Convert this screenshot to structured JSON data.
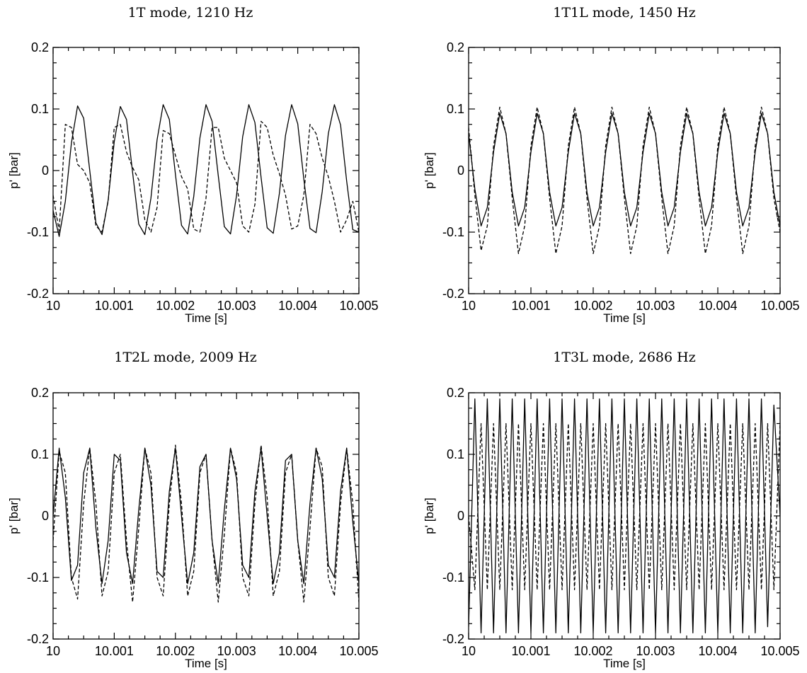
{
  "chart_data": [
    {
      "type": "line",
      "title": "1T mode, 1210 Hz",
      "xlabel": "Time [s]",
      "ylabel": "p' [bar]",
      "xlim": [
        10,
        10.005
      ],
      "ylim": [
        -0.2,
        0.2
      ],
      "xtick_labels": [
        "10",
        "10.001",
        "10.002",
        "10.003",
        "10.004",
        "10.005"
      ],
      "ytick_labels": [
        "-0.2",
        "-0.1",
        "0",
        "0.1",
        "0.2"
      ],
      "series": [
        {
          "style": "solid",
          "x": [
            10.0,
            10.0001,
            10.0002,
            10.0003,
            10.0004,
            10.0005,
            10.0006,
            10.0007,
            10.0008,
            10.0009,
            10.001,
            10.0011,
            10.0012,
            10.0013,
            10.0014,
            10.0015,
            10.0016,
            10.0017,
            10.0018,
            10.0019,
            10.002,
            10.0021,
            10.0022,
            10.0023,
            10.0024,
            10.0025,
            10.0026,
            10.0027,
            10.0028,
            10.0029,
            10.003,
            10.0031,
            10.0032,
            10.0033,
            10.0034,
            10.0035,
            10.0036,
            10.0037,
            10.0038,
            10.0039,
            10.004,
            10.0041,
            10.0042,
            10.0043,
            10.0044,
            10.0045,
            10.0046,
            10.0047,
            10.0048,
            10.0049,
            10.005
          ],
          "values": [
            -0.065,
            -0.107,
            -0.05,
            0.045,
            0.105,
            0.085,
            0.0,
            -0.085,
            -0.104,
            -0.048,
            0.047,
            0.104,
            0.083,
            -0.003,
            -0.087,
            -0.104,
            -0.045,
            0.05,
            0.107,
            0.083,
            -0.006,
            -0.089,
            -0.103,
            -0.042,
            0.053,
            0.107,
            0.08,
            -0.008,
            -0.091,
            -0.103,
            -0.04,
            0.055,
            0.107,
            0.078,
            -0.011,
            -0.093,
            -0.102,
            -0.037,
            0.057,
            0.107,
            0.076,
            -0.014,
            -0.094,
            -0.101,
            -0.034,
            0.06,
            0.107,
            0.074,
            -0.017,
            -0.096,
            -0.1
          ]
        },
        {
          "style": "dashed",
          "x": [
            10.0,
            10.0001,
            10.0002,
            10.0003,
            10.0004,
            10.0005,
            10.0006,
            10.0007,
            10.0008,
            10.0009,
            10.001,
            10.0011,
            10.0012,
            10.0013,
            10.0014,
            10.0015,
            10.0016,
            10.0017,
            10.0018,
            10.0019,
            10.002,
            10.0021,
            10.0022,
            10.0023,
            10.0024,
            10.0025,
            10.0026,
            10.0027,
            10.0028,
            10.0029,
            10.003,
            10.0031,
            10.0032,
            10.0033,
            10.0034,
            10.0035,
            10.0036,
            10.0037,
            10.0038,
            10.0039,
            10.004,
            10.0041,
            10.0042,
            10.0043,
            10.0044,
            10.0045,
            10.0046,
            10.0047,
            10.0048,
            10.0049,
            10.005
          ],
          "values": [
            -0.04,
            -0.098,
            0.075,
            0.07,
            0.01,
            0.0,
            -0.02,
            -0.09,
            -0.1,
            -0.05,
            0.07,
            0.075,
            0.03,
            0.005,
            -0.015,
            -0.08,
            -0.1,
            -0.06,
            0.065,
            0.06,
            0.025,
            -0.01,
            -0.03,
            -0.095,
            -0.1,
            -0.045,
            0.07,
            0.07,
            0.02,
            0.0,
            -0.02,
            -0.09,
            -0.1,
            -0.055,
            0.08,
            0.07,
            0.025,
            -0.005,
            -0.04,
            -0.095,
            -0.09,
            -0.04,
            0.075,
            0.06,
            0.02,
            -0.01,
            -0.05,
            -0.1,
            -0.08,
            -0.05,
            -0.1
          ]
        }
      ]
    },
    {
      "type": "line",
      "title": "1T1L mode, 1450 Hz",
      "xlabel": "Time [s]",
      "ylabel": "p' [bar]",
      "xlim": [
        10,
        10.005
      ],
      "ylim": [
        -0.2,
        0.2
      ],
      "xtick_labels": [
        "10",
        "10.001",
        "10.002",
        "10.003",
        "10.004",
        "10.005"
      ],
      "ytick_labels": [
        "-0.2",
        "-0.1",
        "0",
        "0.1",
        "0.2"
      ],
      "series": [
        {
          "style": "solid",
          "x": [
            10.0,
            10.0001,
            10.0002,
            10.0003,
            10.0004,
            10.0005,
            10.0006,
            10.0007,
            10.0008,
            10.0009,
            10.001,
            10.0011,
            10.0012,
            10.0013,
            10.0014,
            10.0015,
            10.0016,
            10.0017,
            10.0018,
            10.0019,
            10.002,
            10.0021,
            10.0022,
            10.0023,
            10.0024,
            10.0025,
            10.0026,
            10.0027,
            10.0028,
            10.0029,
            10.003,
            10.0031,
            10.0032,
            10.0033,
            10.0034,
            10.0035,
            10.0036,
            10.0037,
            10.0038,
            10.0039,
            10.004,
            10.0041,
            10.0042,
            10.0043,
            10.0044,
            10.0045,
            10.0046,
            10.0047,
            10.0048,
            10.0049,
            10.005
          ],
          "values": [
            0.06,
            -0.03,
            -0.09,
            -0.06,
            0.03,
            0.093,
            0.06,
            -0.035,
            -0.09,
            -0.06,
            0.03,
            0.093,
            0.06,
            -0.035,
            -0.09,
            -0.06,
            0.03,
            0.093,
            0.06,
            -0.035,
            -0.09,
            -0.06,
            0.03,
            0.093,
            0.06,
            -0.035,
            -0.09,
            -0.06,
            0.03,
            0.093,
            0.06,
            -0.035,
            -0.09,
            -0.06,
            0.03,
            0.093,
            0.06,
            -0.035,
            -0.09,
            -0.06,
            0.03,
            0.093,
            0.06,
            -0.035,
            -0.09,
            -0.06,
            0.03,
            0.093,
            0.06,
            -0.035,
            -0.09
          ]
        },
        {
          "style": "dashed",
          "x": [
            10.0,
            10.0001,
            10.0002,
            10.0003,
            10.0004,
            10.0005,
            10.0006,
            10.0007,
            10.0008,
            10.0009,
            10.001,
            10.0011,
            10.0012,
            10.0013,
            10.0014,
            10.0015,
            10.0016,
            10.0017,
            10.0018,
            10.0019,
            10.002,
            10.0021,
            10.0022,
            10.0023,
            10.0024,
            10.0025,
            10.0026,
            10.0027,
            10.0028,
            10.0029,
            10.003,
            10.0031,
            10.0032,
            10.0033,
            10.0034,
            10.0035,
            10.0036,
            10.0037,
            10.0038,
            10.0039,
            10.004,
            10.0041,
            10.0042,
            10.0043,
            10.0044,
            10.0045,
            10.0046,
            10.0047,
            10.0048,
            10.0049,
            10.005
          ],
          "values": [
            0.07,
            -0.04,
            -0.13,
            -0.09,
            0.04,
            0.103,
            0.06,
            -0.045,
            -0.135,
            -0.09,
            0.04,
            0.103,
            0.06,
            -0.045,
            -0.135,
            -0.09,
            0.04,
            0.103,
            0.06,
            -0.045,
            -0.135,
            -0.09,
            0.04,
            0.103,
            0.06,
            -0.045,
            -0.135,
            -0.09,
            0.04,
            0.103,
            0.06,
            -0.045,
            -0.135,
            -0.09,
            0.04,
            0.103,
            0.06,
            -0.045,
            -0.135,
            -0.09,
            0.04,
            0.103,
            0.06,
            -0.045,
            -0.135,
            -0.09,
            0.04,
            0.103,
            0.06,
            -0.045,
            -0.1
          ]
        }
      ]
    },
    {
      "type": "line",
      "title": "1T2L mode, 2009 Hz",
      "xlabel": "Time [s]",
      "ylabel": "p' [bar]",
      "xlim": [
        10,
        10.005
      ],
      "ylim": [
        -0.2,
        0.2
      ],
      "xtick_labels": [
        "10",
        "10.001",
        "10.002",
        "10.003",
        "10.004",
        "10.005"
      ],
      "ytick_labels": [
        "-0.2",
        "-0.1",
        "0",
        "0.1",
        "0.2"
      ],
      "series": [
        {
          "style": "solid",
          "x": [
            10.0,
            10.0001,
            10.0002,
            10.0003,
            10.0004,
            10.0005,
            10.0006,
            10.0007,
            10.0008,
            10.0009,
            10.001,
            10.0011,
            10.0012,
            10.0013,
            10.0014,
            10.0015,
            10.0016,
            10.0017,
            10.0018,
            10.0019,
            10.002,
            10.0021,
            10.0022,
            10.0023,
            10.0024,
            10.0025,
            10.0026,
            10.0027,
            10.0028,
            10.0029,
            10.003,
            10.0031,
            10.0032,
            10.0033,
            10.0034,
            10.0035,
            10.0036,
            10.0037,
            10.0038,
            10.0039,
            10.004,
            10.0041,
            10.0042,
            10.0043,
            10.0044,
            10.0045,
            10.0046,
            10.0047,
            10.0048,
            10.0049,
            10.005
          ],
          "values": [
            0.0,
            0.11,
            0.03,
            -0.105,
            -0.08,
            0.07,
            0.11,
            -0.02,
            -0.11,
            -0.04,
            0.1,
            0.09,
            -0.06,
            -0.11,
            0.01,
            0.11,
            0.05,
            -0.09,
            -0.1,
            0.04,
            0.11,
            0.0,
            -0.11,
            -0.06,
            0.08,
            0.1,
            -0.04,
            -0.11,
            0.01,
            0.11,
            0.06,
            -0.08,
            -0.1,
            0.04,
            0.11,
            0.0,
            -0.11,
            -0.06,
            0.09,
            0.1,
            -0.04,
            -0.11,
            0.02,
            0.11,
            0.06,
            -0.08,
            -0.1,
            0.04,
            0.11,
            -0.01,
            -0.11
          ]
        },
        {
          "style": "dashed",
          "x": [
            10.0,
            10.0001,
            10.0002,
            10.0003,
            10.0004,
            10.0005,
            10.0006,
            10.0007,
            10.0008,
            10.0009,
            10.001,
            10.0011,
            10.0012,
            10.0013,
            10.0014,
            10.0015,
            10.0016,
            10.0017,
            10.0018,
            10.0019,
            10.002,
            10.0021,
            10.0022,
            10.0023,
            10.0024,
            10.0025,
            10.0026,
            10.0027,
            10.0028,
            10.0029,
            10.003,
            10.0031,
            10.0032,
            10.0033,
            10.0034,
            10.0035,
            10.0036,
            10.0037,
            10.0038,
            10.0039,
            10.004,
            10.0041,
            10.0042,
            10.0043,
            10.0044,
            10.0045,
            10.0046,
            10.0047,
            10.0048,
            10.0049,
            10.005
          ],
          "values": [
            -0.04,
            0.105,
            0.07,
            -0.1,
            -0.135,
            0.02,
            0.11,
            0.02,
            -0.13,
            -0.09,
            0.07,
            0.1,
            -0.04,
            -0.14,
            -0.02,
            0.11,
            0.07,
            -0.1,
            -0.13,
            0.02,
            0.115,
            0.02,
            -0.13,
            -0.09,
            0.07,
            0.1,
            -0.04,
            -0.14,
            -0.03,
            0.11,
            0.07,
            -0.1,
            -0.13,
            0.02,
            0.115,
            0.03,
            -0.13,
            -0.09,
            0.07,
            0.1,
            -0.04,
            -0.14,
            -0.02,
            0.11,
            0.08,
            -0.1,
            -0.13,
            0.02,
            0.11,
            0.02,
            -0.14
          ]
        }
      ]
    },
    {
      "type": "line",
      "title": "1T3L mode, 2686 Hz",
      "xlabel": "Time [s]",
      "ylabel": "p' [bar]",
      "xlim": [
        10,
        10.005
      ],
      "ylim": [
        -0.2,
        0.2
      ],
      "xtick_labels": [
        "10",
        "10.001",
        "10.002",
        "10.003",
        "10.004",
        "10.005"
      ],
      "ytick_labels": [
        "-0.2",
        "-0.1",
        "0",
        "0.1",
        "0.2"
      ],
      "series": [
        {
          "style": "solid",
          "x": [
            10.0,
            10.0001,
            10.0002,
            10.0003,
            10.0004,
            10.0005,
            10.0006,
            10.0007,
            10.0008,
            10.0009,
            10.001,
            10.0011,
            10.0012,
            10.0013,
            10.0014,
            10.0015,
            10.0016,
            10.0017,
            10.0018,
            10.0019,
            10.002,
            10.0021,
            10.0022,
            10.0023,
            10.0024,
            10.0025,
            10.0026,
            10.0027,
            10.0028,
            10.0029,
            10.003,
            10.0031,
            10.0032,
            10.0033,
            10.0034,
            10.0035,
            10.0036,
            10.0037,
            10.0038,
            10.0039,
            10.004,
            10.0041,
            10.0042,
            10.0043,
            10.0044,
            10.0045,
            10.0046,
            10.0047,
            10.0048,
            10.0049,
            10.005
          ],
          "values": [
            -0.18,
            0.19,
            -0.19,
            0.19,
            -0.19,
            0.19,
            -0.19,
            0.19,
            -0.19,
            0.19,
            -0.19,
            0.19,
            -0.19,
            0.19,
            -0.19,
            0.19,
            -0.19,
            0.19,
            -0.19,
            0.19,
            -0.19,
            0.19,
            -0.19,
            0.19,
            -0.19,
            0.19,
            -0.19,
            0.19,
            -0.19,
            0.19,
            -0.19,
            0.19,
            -0.19,
            0.19,
            -0.19,
            0.19,
            -0.19,
            0.19,
            -0.19,
            0.19,
            -0.19,
            0.19,
            -0.19,
            0.19,
            -0.19,
            0.19,
            -0.19,
            0.19,
            -0.18,
            0.18,
            0.0
          ]
        },
        {
          "style": "dashed",
          "x": [
            10.0,
            10.0001,
            10.0002,
            10.0003,
            10.0004,
            10.0005,
            10.0006,
            10.0007,
            10.0008,
            10.0009,
            10.001,
            10.0011,
            10.0012,
            10.0013,
            10.0014,
            10.0015,
            10.0016,
            10.0017,
            10.0018,
            10.0019,
            10.002,
            10.0021,
            10.0022,
            10.0023,
            10.0024,
            10.0025,
            10.0026,
            10.0027,
            10.0028,
            10.0029,
            10.003,
            10.0031,
            10.0032,
            10.0033,
            10.0034,
            10.0035,
            10.0036,
            10.0037,
            10.0038,
            10.0039,
            10.004,
            10.0041,
            10.0042,
            10.0043,
            10.0044,
            10.0045,
            10.0046,
            10.0047,
            10.0048,
            10.0049,
            10.005
          ],
          "values": [
            0.0,
            -0.12,
            0.15,
            -0.12,
            0.15,
            -0.12,
            0.15,
            -0.12,
            0.15,
            -0.12,
            0.15,
            -0.12,
            0.15,
            -0.12,
            0.15,
            -0.12,
            0.15,
            -0.12,
            0.15,
            -0.12,
            0.15,
            -0.12,
            0.15,
            -0.12,
            0.15,
            -0.12,
            0.15,
            -0.12,
            0.15,
            -0.12,
            0.15,
            -0.12,
            0.15,
            -0.12,
            0.15,
            -0.12,
            0.15,
            -0.12,
            0.15,
            -0.12,
            0.15,
            -0.12,
            0.15,
            -0.12,
            0.15,
            -0.12,
            0.15,
            -0.12,
            0.15,
            -0.12,
            0.15
          ]
        }
      ]
    }
  ]
}
